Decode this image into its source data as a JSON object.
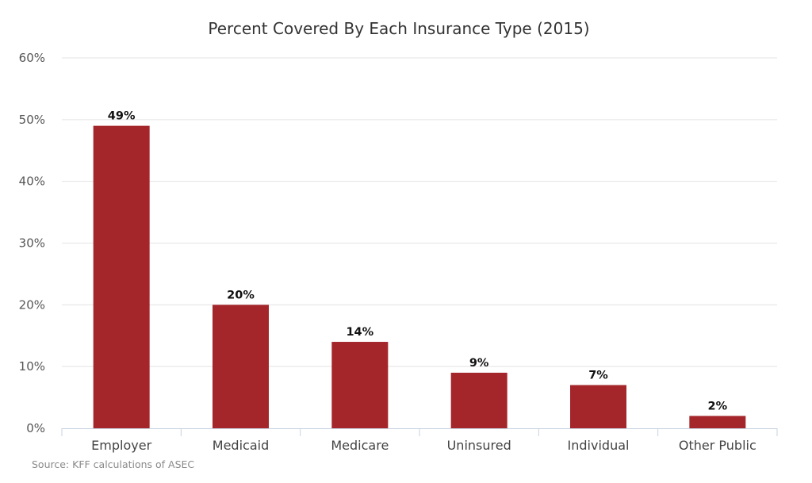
{
  "chart_data": {
    "type": "bar",
    "title": "Percent Covered By Each Insurance Type (2015)",
    "categories": [
      "Employer",
      "Medicaid",
      "Medicare",
      "Uninsured",
      "Individual",
      "Other Public"
    ],
    "values": [
      49,
      20,
      14,
      9,
      7,
      2
    ],
    "data_labels": [
      "49%",
      "20%",
      "14%",
      "9%",
      "7%",
      "2%"
    ],
    "ylim": [
      0,
      60
    ],
    "yticks": [
      0,
      10,
      20,
      30,
      40,
      50,
      60
    ],
    "ytick_labels": [
      "0%",
      "10%",
      "20%",
      "30%",
      "40%",
      "50%",
      "60%"
    ],
    "grid": true,
    "bar_color": "#a4252a",
    "source": "Source: KFF calculations of ASEC"
  }
}
